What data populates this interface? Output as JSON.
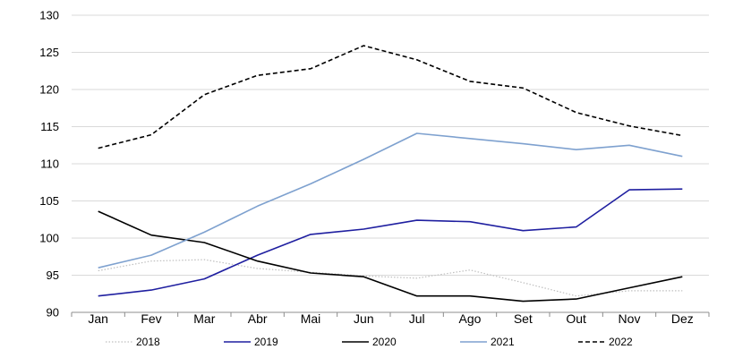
{
  "chart_data": {
    "type": "line",
    "categories": [
      "Jan",
      "Fev",
      "Mar",
      "Abr",
      "Mai",
      "Jun",
      "Jul",
      "Ago",
      "Set",
      "Out",
      "Nov",
      "Dez"
    ],
    "ylim": [
      90,
      130
    ],
    "yticks": [
      90,
      95,
      100,
      105,
      110,
      115,
      120,
      125,
      130
    ],
    "grid": "horizontal",
    "legend_position": "bottom",
    "series": [
      {
        "name": "2018",
        "color": "#bfbfbf",
        "style": "dotted",
        "values": [
          95.6,
          96.9,
          97.1,
          95.9,
          95.4,
          94.9,
          94.6,
          95.7,
          94.0,
          92.2,
          92.9,
          92.9
        ]
      },
      {
        "name": "2019",
        "color": "#1f1fa0",
        "style": "solid",
        "values": [
          92.2,
          93.0,
          94.5,
          97.7,
          100.5,
          101.2,
          102.4,
          102.2,
          101.0,
          101.5,
          106.5,
          106.6
        ]
      },
      {
        "name": "2020",
        "color": "#000000",
        "style": "solid",
        "values": [
          103.6,
          100.4,
          99.4,
          96.9,
          95.3,
          94.8,
          92.2,
          92.2,
          91.5,
          91.8,
          93.3,
          94.8
        ]
      },
      {
        "name": "2021",
        "color": "#7ea1cf",
        "style": "solid",
        "values": [
          96.0,
          97.7,
          100.8,
          104.3,
          107.3,
          110.6,
          114.1,
          113.4,
          112.7,
          111.9,
          112.5,
          111.0
        ]
      },
      {
        "name": "2022",
        "color": "#000000",
        "style": "dashed",
        "values": [
          112.1,
          113.9,
          119.3,
          121.9,
          122.8,
          125.9,
          124.0,
          121.1,
          120.2,
          116.9,
          115.1,
          113.8
        ]
      }
    ]
  }
}
